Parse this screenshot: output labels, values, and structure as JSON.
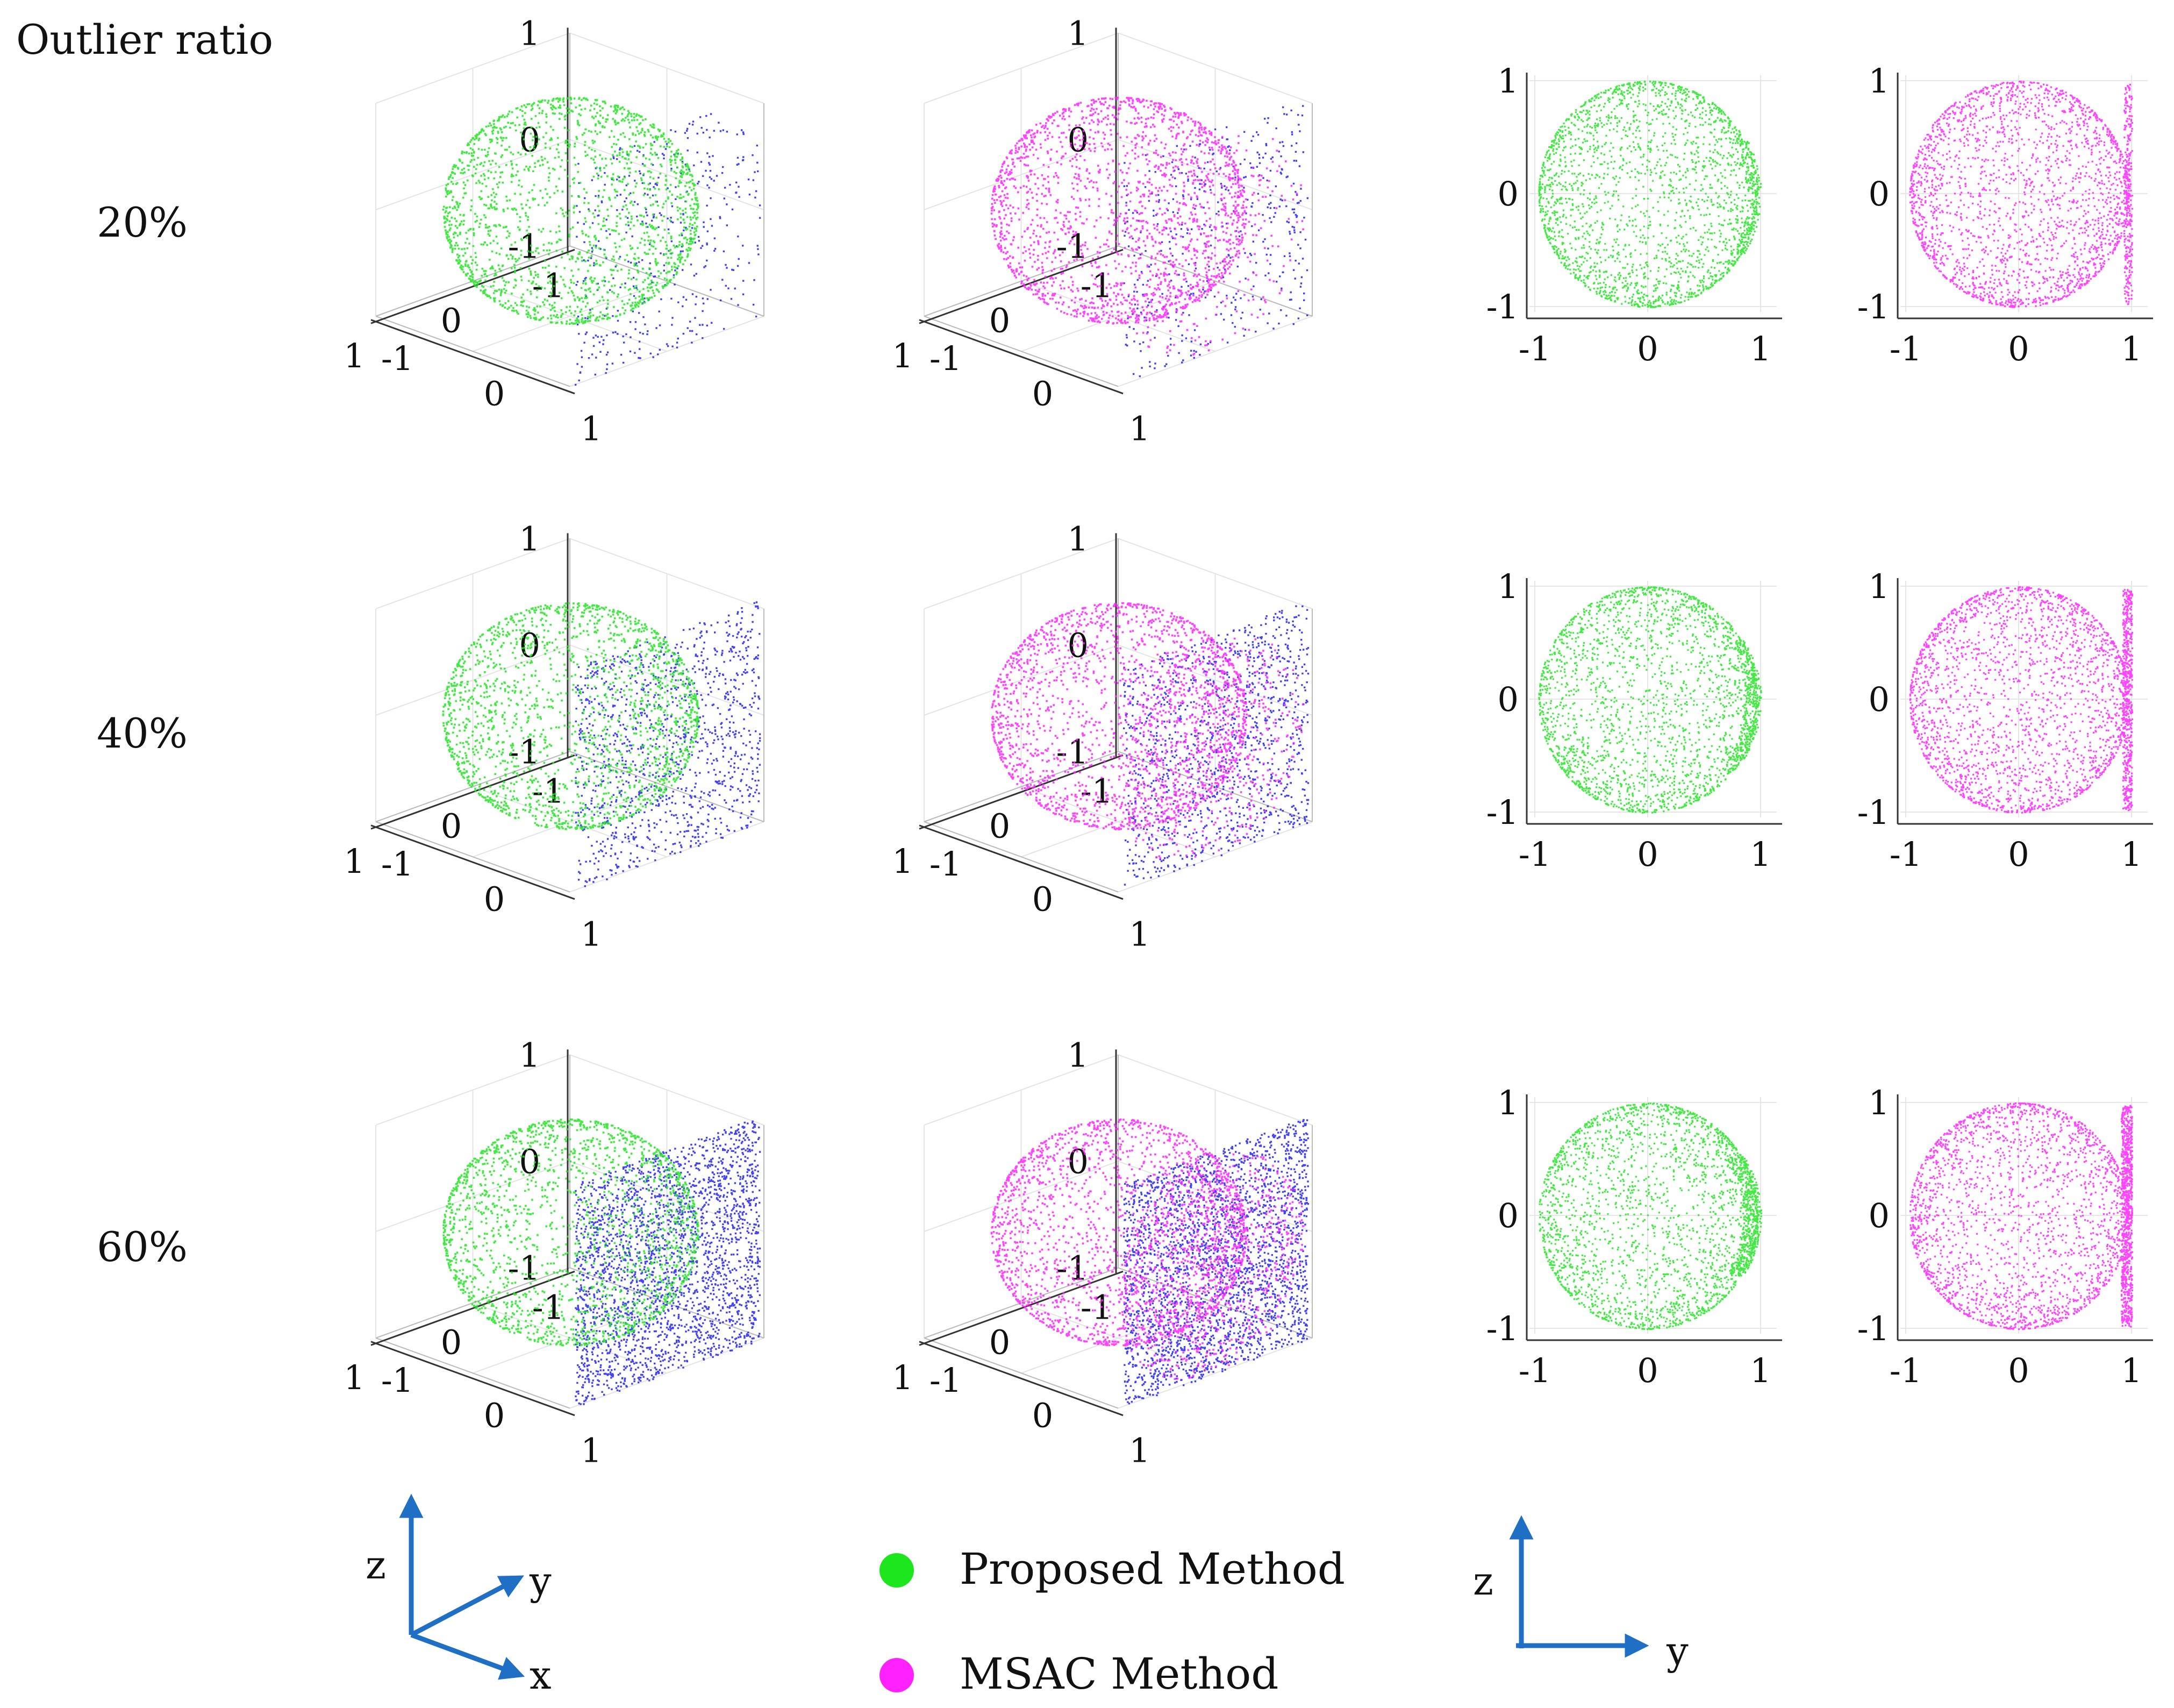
{
  "header": {
    "outlier_ratio_label": "Outlier ratio"
  },
  "rows": [
    {
      "label": "20%",
      "ratio": 0.2
    },
    {
      "label": "40%",
      "ratio": 0.4
    },
    {
      "label": "60%",
      "ratio": 0.6
    }
  ],
  "legend": {
    "proposed": {
      "label": "Proposed Method",
      "color": "#1ee61e"
    },
    "msac": {
      "label": "MSAC Method",
      "color": "#ff22ff"
    }
  },
  "axes_3d_key": {
    "z": "z",
    "y": "y",
    "x": "x"
  },
  "axes_2d_key": {
    "z": "z",
    "y": "y"
  },
  "colors": {
    "outlier_plane": "#2222ee",
    "axis_arrow": "#1f6fc4",
    "sphere_proposed": "#1ee61e",
    "sphere_msac": "#ff22ff"
  },
  "chart_data": [
    {
      "type": "scatter",
      "view": "3d",
      "method": "Proposed",
      "outlier_ratio": "20%",
      "xlim": [
        -1,
        1
      ],
      "ylim": [
        -1,
        1
      ],
      "zlim": [
        -1,
        1
      ],
      "ticks": [
        "-1",
        "0",
        "1"
      ],
      "grid": true,
      "sphere": {
        "center": [
          0,
          0,
          0
        ],
        "radius": 1
      },
      "outlier_plane": {
        "y": 1,
        "z_range": [
          -1,
          1
        ]
      }
    },
    {
      "type": "scatter",
      "view": "3d",
      "method": "MSAC",
      "outlier_ratio": "20%",
      "xlim": [
        -1,
        1
      ],
      "ylim": [
        -1,
        1
      ],
      "zlim": [
        -1,
        1
      ],
      "ticks": [
        "-1",
        "0",
        "1"
      ],
      "grid": true
    },
    {
      "type": "scatter",
      "view": "yz",
      "method": "Proposed",
      "outlier_ratio": "20%",
      "xlim": [
        -1,
        1
      ],
      "ylim": [
        -1,
        1
      ],
      "ticks": [
        "-1",
        "0",
        "1"
      ],
      "grid": true
    },
    {
      "type": "scatter",
      "view": "yz",
      "method": "MSAC",
      "outlier_ratio": "20%",
      "xlim": [
        -1,
        1
      ],
      "ylim": [
        -1,
        1
      ],
      "ticks": [
        "-1",
        "0",
        "1"
      ],
      "grid": true
    },
    {
      "type": "scatter",
      "view": "3d",
      "method": "Proposed",
      "outlier_ratio": "40%",
      "xlim": [
        -1,
        1
      ],
      "ylim": [
        -1,
        1
      ],
      "zlim": [
        -1,
        1
      ],
      "ticks": [
        "-1",
        "0",
        "1"
      ],
      "grid": true
    },
    {
      "type": "scatter",
      "view": "3d",
      "method": "MSAC",
      "outlier_ratio": "40%",
      "xlim": [
        -1,
        1
      ],
      "ylim": [
        -1,
        1
      ],
      "zlim": [
        -1,
        1
      ],
      "ticks": [
        "-1",
        "0",
        "1"
      ],
      "grid": true
    },
    {
      "type": "scatter",
      "view": "yz",
      "method": "Proposed",
      "outlier_ratio": "40%",
      "xlim": [
        -1,
        1
      ],
      "ylim": [
        -1,
        1
      ],
      "ticks": [
        "-1",
        "0",
        "1"
      ],
      "grid": true
    },
    {
      "type": "scatter",
      "view": "yz",
      "method": "MSAC",
      "outlier_ratio": "40%",
      "xlim": [
        -1,
        1
      ],
      "ylim": [
        -1,
        1
      ],
      "ticks": [
        "-1",
        "0",
        "1"
      ],
      "grid": true
    },
    {
      "type": "scatter",
      "view": "3d",
      "method": "Proposed",
      "outlier_ratio": "60%",
      "xlim": [
        -1,
        1
      ],
      "ylim": [
        -1,
        1
      ],
      "zlim": [
        -1,
        1
      ],
      "ticks": [
        "-1",
        "0",
        "1"
      ],
      "grid": true
    },
    {
      "type": "scatter",
      "view": "3d",
      "method": "MSAC",
      "outlier_ratio": "60%",
      "xlim": [
        -1,
        1
      ],
      "ylim": [
        -1,
        1
      ],
      "zlim": [
        -1,
        1
      ],
      "ticks": [
        "-1",
        "0",
        "1"
      ],
      "grid": true
    },
    {
      "type": "scatter",
      "view": "yz",
      "method": "Proposed",
      "outlier_ratio": "60%",
      "xlim": [
        -1,
        1
      ],
      "ylim": [
        -1,
        1
      ],
      "ticks": [
        "-1",
        "0",
        "1"
      ],
      "grid": true
    },
    {
      "type": "scatter",
      "view": "yz",
      "method": "MSAC",
      "outlier_ratio": "60%",
      "xlim": [
        -1,
        1
      ],
      "ylim": [
        -1,
        1
      ],
      "ticks": [
        "-1",
        "0",
        "1"
      ],
      "grid": true
    }
  ]
}
